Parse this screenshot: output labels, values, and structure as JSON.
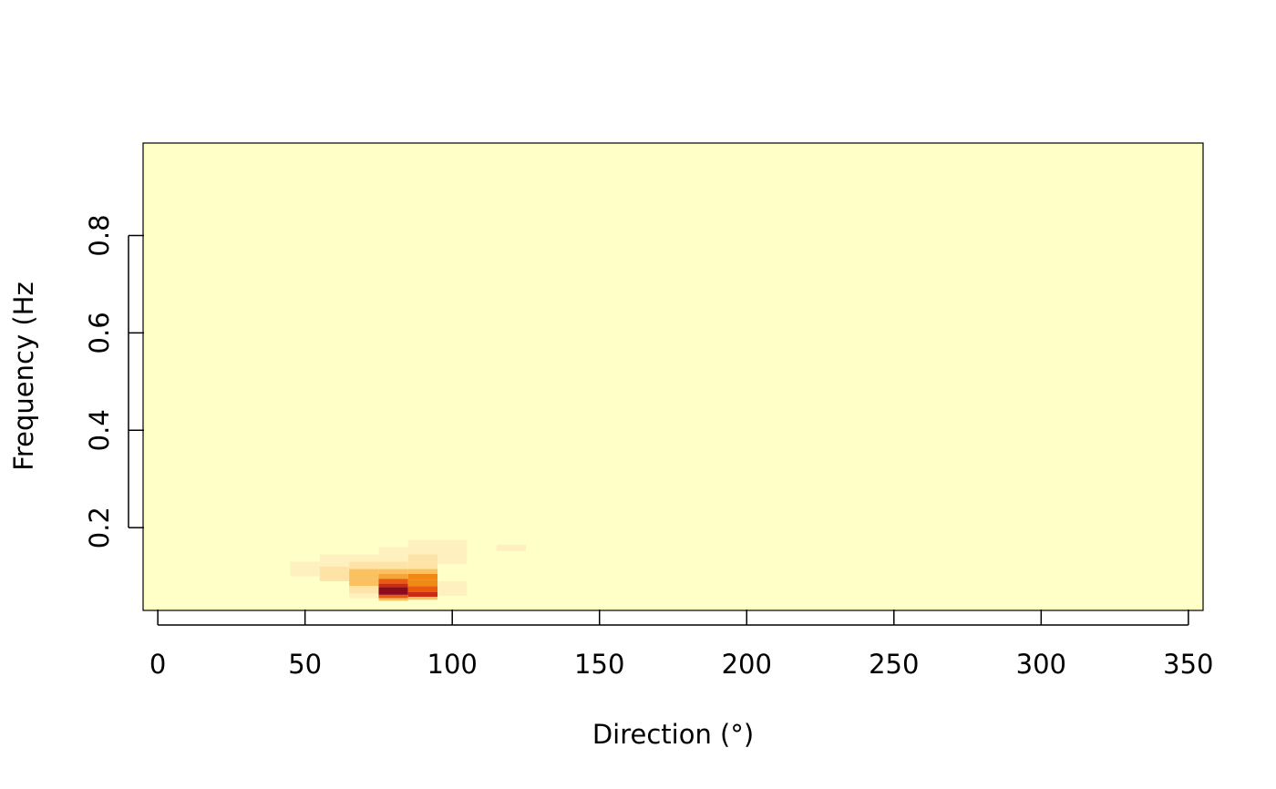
{
  "chart_data": {
    "type": "heatmap",
    "xlabel": "Direction (°)",
    "ylabel": "Frequency (Hz",
    "xlim": [
      -5,
      355
    ],
    "ylim": [
      0.03,
      0.99
    ],
    "x_ticks": [
      0,
      50,
      100,
      150,
      200,
      250,
      300,
      350
    ],
    "y_ticks": [
      0.2,
      0.4,
      0.6,
      0.8
    ],
    "background_color": "#FFFFC8",
    "color_scale": [
      "#FFFFC8",
      "#FFF0C0",
      "#FDE4A6",
      "#F9C160",
      "#F5A43A",
      "#F08A14",
      "#E85A10",
      "#CC2A12",
      "#8C0A1E"
    ],
    "cells": [
      {
        "x0": 45,
        "x1": 55,
        "y0": 0.1,
        "y1": 0.13,
        "level": 1
      },
      {
        "x0": 55,
        "x1": 65,
        "y0": 0.09,
        "y1": 0.12,
        "level": 2
      },
      {
        "x0": 55,
        "x1": 65,
        "y0": 0.12,
        "y1": 0.145,
        "level": 1
      },
      {
        "x0": 65,
        "x1": 75,
        "y0": 0.13,
        "y1": 0.145,
        "level": 1
      },
      {
        "x0": 65,
        "x1": 75,
        "y0": 0.115,
        "y1": 0.13,
        "level": 2
      },
      {
        "x0": 65,
        "x1": 75,
        "y0": 0.08,
        "y1": 0.115,
        "level": 3
      },
      {
        "x0": 65,
        "x1": 75,
        "y0": 0.065,
        "y1": 0.08,
        "level": 2
      },
      {
        "x0": 65,
        "x1": 75,
        "y0": 0.055,
        "y1": 0.065,
        "level": 1
      },
      {
        "x0": 75,
        "x1": 85,
        "y0": 0.145,
        "y1": 0.16,
        "level": 1
      },
      {
        "x0": 75,
        "x1": 85,
        "y0": 0.13,
        "y1": 0.145,
        "level": 1
      },
      {
        "x0": 75,
        "x1": 85,
        "y0": 0.115,
        "y1": 0.13,
        "level": 2
      },
      {
        "x0": 75,
        "x1": 85,
        "y0": 0.105,
        "y1": 0.115,
        "level": 3
      },
      {
        "x0": 75,
        "x1": 85,
        "y0": 0.095,
        "y1": 0.105,
        "level": 4
      },
      {
        "x0": 75,
        "x1": 85,
        "y0": 0.085,
        "y1": 0.095,
        "level": 6
      },
      {
        "x0": 75,
        "x1": 85,
        "y0": 0.078,
        "y1": 0.085,
        "level": 7
      },
      {
        "x0": 75,
        "x1": 85,
        "y0": 0.062,
        "y1": 0.078,
        "level": 8
      },
      {
        "x0": 75,
        "x1": 85,
        "y0": 0.055,
        "y1": 0.062,
        "level": 6
      },
      {
        "x0": 75,
        "x1": 85,
        "y0": 0.05,
        "y1": 0.055,
        "level": 3
      },
      {
        "x0": 85,
        "x1": 95,
        "y0": 0.16,
        "y1": 0.175,
        "level": 1
      },
      {
        "x0": 85,
        "x1": 95,
        "y0": 0.145,
        "y1": 0.16,
        "level": 1
      },
      {
        "x0": 85,
        "x1": 95,
        "y0": 0.13,
        "y1": 0.145,
        "level": 2
      },
      {
        "x0": 85,
        "x1": 95,
        "y0": 0.115,
        "y1": 0.13,
        "level": 2
      },
      {
        "x0": 85,
        "x1": 95,
        "y0": 0.105,
        "y1": 0.115,
        "level": 3
      },
      {
        "x0": 85,
        "x1": 95,
        "y0": 0.092,
        "y1": 0.105,
        "level": 5
      },
      {
        "x0": 85,
        "x1": 95,
        "y0": 0.08,
        "y1": 0.092,
        "level": 5
      },
      {
        "x0": 85,
        "x1": 95,
        "y0": 0.068,
        "y1": 0.08,
        "level": 6
      },
      {
        "x0": 85,
        "x1": 95,
        "y0": 0.058,
        "y1": 0.068,
        "level": 7
      },
      {
        "x0": 85,
        "x1": 95,
        "y0": 0.052,
        "y1": 0.058,
        "level": 3
      },
      {
        "x0": 95,
        "x1": 105,
        "y0": 0.125,
        "y1": 0.175,
        "level": 1
      },
      {
        "x0": 95,
        "x1": 105,
        "y0": 0.06,
        "y1": 0.09,
        "level": 1
      },
      {
        "x0": 115,
        "x1": 125,
        "y0": 0.152,
        "y1": 0.165,
        "level": 1
      }
    ]
  }
}
